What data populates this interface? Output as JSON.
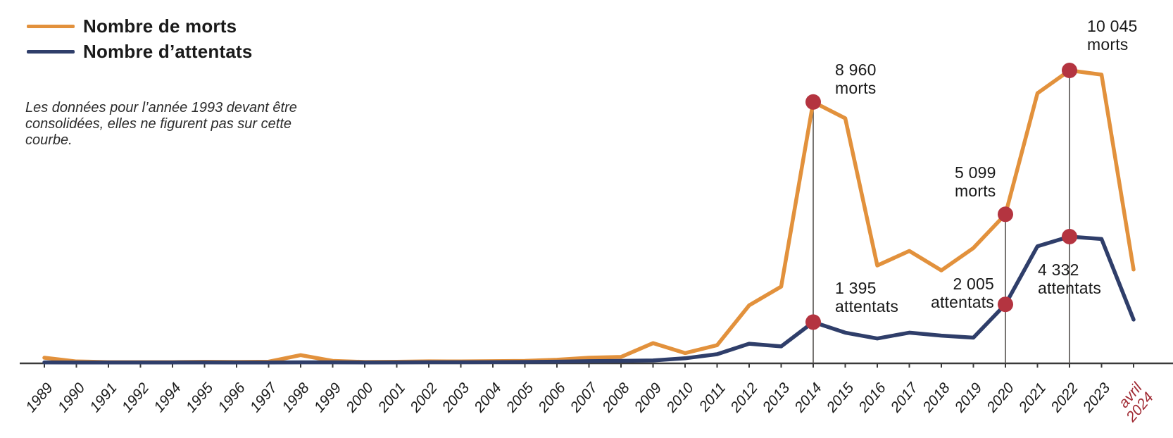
{
  "legend": {
    "items": [
      {
        "label": "Nombre de morts",
        "color": "#E2913C"
      },
      {
        "label": "Nombre d’attentats",
        "color": "#2F3E6A"
      }
    ]
  },
  "note": {
    "lines": [
      "Les données pour l’année 1993 devant être",
      "consolidées, elles ne figurent pas sur cette",
      "courbe."
    ]
  },
  "annotations": [
    {
      "value": "8 960",
      "label": "morts"
    },
    {
      "value": "1 395",
      "label": "attentats"
    },
    {
      "value": "5 099",
      "label": "morts"
    },
    {
      "value": "2 005",
      "label": "attentats"
    },
    {
      "value": "10 045",
      "label": "morts"
    },
    {
      "value": "4 332",
      "label": "attentats"
    }
  ],
  "chart_data": {
    "type": "line",
    "title": "",
    "xlabel": "",
    "ylabel": "",
    "ylim": [
      0,
      10045
    ],
    "grid": false,
    "legend_position": "top-left",
    "categories": [
      "1989",
      "1990",
      "1991",
      "1992",
      "1994",
      "1995",
      "1996",
      "1997",
      "1998",
      "1999",
      "2000",
      "2001",
      "2002",
      "2003",
      "2004",
      "2005",
      "2006",
      "2007",
      "2008",
      "2009",
      "2010",
      "2011",
      "2012",
      "2013",
      "2014",
      "2015",
      "2016",
      "2017",
      "2018",
      "2019",
      "2020",
      "2021",
      "2022",
      "2023",
      "avril 2024"
    ],
    "x_note": "1993 omitted (data being consolidated)",
    "x_highlight_label": "avril 2024",
    "x_highlight_color": "#A02A33",
    "axis_color": "#3A3A3A",
    "guide_color": "#55514E",
    "highlight_dot_color": "#B43440",
    "series": [
      {
        "name": "Nombre de morts",
        "color": "#E2913C",
        "values": [
          170,
          40,
          20,
          20,
          20,
          30,
          25,
          35,
          260,
          60,
          25,
          30,
          45,
          40,
          50,
          60,
          100,
          170,
          195,
          670,
          330,
          600,
          1970,
          2615,
          8960,
          8400,
          3340,
          3840,
          3170,
          3940,
          5099,
          9260,
          10045,
          9900,
          3200
        ]
      },
      {
        "name": "Nombre d’attentats",
        "color": "#2F3E6A",
        "values": [
          10,
          8,
          8,
          8,
          8,
          10,
          8,
          8,
          12,
          12,
          8,
          10,
          15,
          15,
          20,
          25,
          35,
          50,
          60,
          75,
          150,
          290,
          650,
          560,
          1395,
          1030,
          830,
          1030,
          930,
          860,
          2005,
          4000,
          4332,
          4250,
          1480
        ]
      }
    ],
    "vertical_guides": [
      "2014",
      "2020",
      "2022"
    ],
    "highlights": [
      {
        "series": 0,
        "category": "2014",
        "value": 8960
      },
      {
        "series": 1,
        "category": "2014",
        "value": 1395
      },
      {
        "series": 0,
        "category": "2020",
        "value": 5099
      },
      {
        "series": 1,
        "category": "2020",
        "value": 2005
      },
      {
        "series": 0,
        "category": "2022",
        "value": 10045
      },
      {
        "series": 1,
        "category": "2022",
        "value": 4332
      }
    ]
  }
}
